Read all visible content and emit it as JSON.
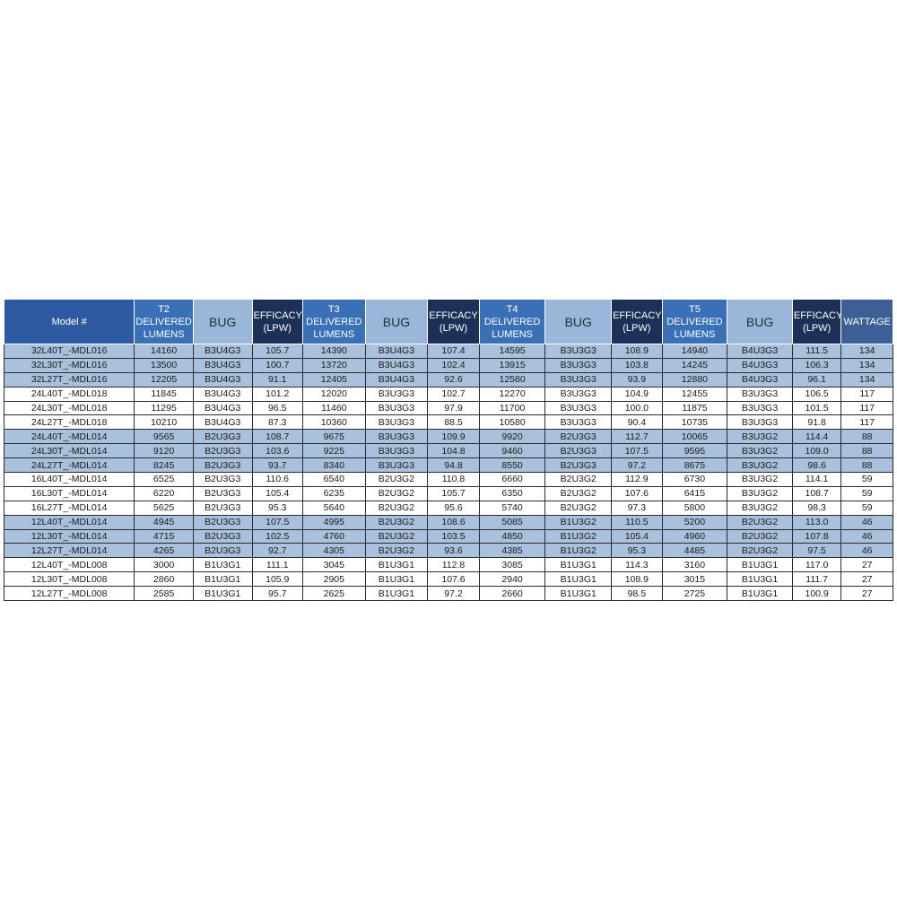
{
  "columns": [
    {
      "label": "Model #",
      "kind": "model"
    },
    {
      "label": "T2 DELIVERED LUMENS",
      "lines": [
        "T2",
        "DELIVERED",
        "LUMENS"
      ],
      "kind": "lumens"
    },
    {
      "label": "BUG",
      "lines": [
        "BUG"
      ],
      "kind": "bug"
    },
    {
      "label": "EFFICACY (LPW)",
      "lines": [
        "EFFICACY",
        "(LPW)"
      ],
      "kind": "eff"
    },
    {
      "label": "T3 DELIVERED LUMENS",
      "lines": [
        "T3",
        "DELIVERED",
        "LUMENS"
      ],
      "kind": "lumens"
    },
    {
      "label": "BUG",
      "lines": [
        "BUG"
      ],
      "kind": "bug"
    },
    {
      "label": "EFFICACY (LPW)",
      "lines": [
        "EFFICACY",
        "(LPW)"
      ],
      "kind": "eff"
    },
    {
      "label": "T4 DELIVERED LUMENS",
      "lines": [
        "T4 DELIVERED",
        "LUMENS"
      ],
      "kind": "lumens"
    },
    {
      "label": "BUG",
      "lines": [
        "BUG"
      ],
      "kind": "bug"
    },
    {
      "label": "EFFICACY (LPW)",
      "lines": [
        "EFFICACY",
        "(LPW)"
      ],
      "kind": "eff"
    },
    {
      "label": "T5 DELIVERED LUMENS",
      "lines": [
        "T5 DELIVERED",
        "LUMENS"
      ],
      "kind": "lumens"
    },
    {
      "label": "BUG",
      "lines": [
        "BUG"
      ],
      "kind": "bug"
    },
    {
      "label": "EFFICACY (LPW)",
      "lines": [
        "EFFICACY",
        "(LPW)"
      ],
      "kind": "eff"
    },
    {
      "label": "WATTAGE",
      "lines": [
        "WATTAGE"
      ],
      "kind": "watt"
    }
  ],
  "rows": [
    {
      "shade": true,
      "cells": [
        "32L40T_-MDL016",
        "14160",
        "B3U4G3",
        "105.7",
        "14390",
        "B3U4G3",
        "107.4",
        "14595",
        "B3U3G3",
        "108.9",
        "14940",
        "B4U3G3",
        "111.5",
        "134"
      ]
    },
    {
      "shade": true,
      "cells": [
        "32L30T_-MDL016",
        "13500",
        "B3U4G3",
        "100.7",
        "13720",
        "B3U4G3",
        "102.4",
        "13915",
        "B3U3G3",
        "103.8",
        "14245",
        "B4U3G3",
        "106.3",
        "134"
      ]
    },
    {
      "shade": true,
      "cells": [
        "32L27T_-MDL016",
        "12205",
        "B3U4G3",
        "91.1",
        "12405",
        "B3U4G3",
        "92.6",
        "12580",
        "B3U3G3",
        "93.9",
        "12880",
        "B4U3G3",
        "96.1",
        "134"
      ]
    },
    {
      "shade": false,
      "cells": [
        "24L40T_-MDL018",
        "11845",
        "B3U4G3",
        "101.2",
        "12020",
        "B3U3G3",
        "102.7",
        "12270",
        "B3U3G3",
        "104.9",
        "12455",
        "B3U3G3",
        "106.5",
        "117"
      ]
    },
    {
      "shade": false,
      "cells": [
        "24L30T_-MDL018",
        "11295",
        "B3U4G3",
        "96.5",
        "11460",
        "B3U3G3",
        "97.9",
        "11700",
        "B3U3G3",
        "100.0",
        "11875",
        "B3U3G3",
        "101.5",
        "117"
      ]
    },
    {
      "shade": false,
      "cells": [
        "24L27T_-MDL018",
        "10210",
        "B3U4G3",
        "87.3",
        "10360",
        "B3U3G3",
        "88.5",
        "10580",
        "B3U3G3",
        "90.4",
        "10735",
        "B3U3G3",
        "91.8",
        "117"
      ]
    },
    {
      "shade": true,
      "cells": [
        "24L40T_-MDL014",
        "9565",
        "B2U3G3",
        "108.7",
        "9675",
        "B3U3G3",
        "109.9",
        "9920",
        "B2U3G3",
        "112.7",
        "10065",
        "B3U3G2",
        "114.4",
        "88"
      ]
    },
    {
      "shade": true,
      "cells": [
        "24L30T_-MDL014",
        "9120",
        "B2U3G3",
        "103.6",
        "9225",
        "B3U3G3",
        "104.8",
        "9460",
        "B2U3G3",
        "107.5",
        "9595",
        "B3U3G2",
        "109.0",
        "88"
      ]
    },
    {
      "shade": true,
      "cells": [
        "24L27T_-MDL014",
        "8245",
        "B2U3G3",
        "93.7",
        "8340",
        "B3U3G3",
        "94.8",
        "8550",
        "B2U3G3",
        "97.2",
        "8675",
        "B3U3G2",
        "98.6",
        "88"
      ]
    },
    {
      "shade": false,
      "cells": [
        "16L40T_-MDL014",
        "6525",
        "B2U3G3",
        "110.6",
        "6540",
        "B2U3G2",
        "110.8",
        "6660",
        "B2U3G2",
        "112.9",
        "6730",
        "B3U3G2",
        "114.1",
        "59"
      ]
    },
    {
      "shade": false,
      "cells": [
        "16L30T_-MDL014",
        "6220",
        "B2U3G3",
        "105.4",
        "6235",
        "B2U3G2",
        "105.7",
        "6350",
        "B2U3G2",
        "107.6",
        "6415",
        "B3U3G2",
        "108.7",
        "59"
      ]
    },
    {
      "shade": false,
      "cells": [
        "16L27T_-MDL014",
        "5625",
        "B2U3G3",
        "95.3",
        "5640",
        "B2U3G2",
        "95.6",
        "5740",
        "B2U3G2",
        "97.3",
        "5800",
        "B3U3G2",
        "98.3",
        "59"
      ]
    },
    {
      "shade": true,
      "cells": [
        "12L40T_-MDL014",
        "4945",
        "B2U3G3",
        "107.5",
        "4995",
        "B2U3G2",
        "108.6",
        "5085",
        "B1U3G2",
        "110.5",
        "5200",
        "B2U3G2",
        "113.0",
        "46"
      ]
    },
    {
      "shade": true,
      "cells": [
        "12L30T_-MDL014",
        "4715",
        "B2U3G3",
        "102.5",
        "4760",
        "B2U3G2",
        "103.5",
        "4850",
        "B1U3G2",
        "105.4",
        "4960",
        "B2U3G2",
        "107.8",
        "46"
      ]
    },
    {
      "shade": true,
      "cells": [
        "12L27T_-MDL014",
        "4265",
        "B2U3G3",
        "92.7",
        "4305",
        "B2U3G2",
        "93.6",
        "4385",
        "B1U3G2",
        "95.3",
        "4485",
        "B2U3G2",
        "97.5",
        "46"
      ]
    },
    {
      "shade": false,
      "cells": [
        "12L40T_-MDL008",
        "3000",
        "B1U3G1",
        "111.1",
        "3045",
        "B1U3G1",
        "112.8",
        "3085",
        "B1U3G1",
        "114.3",
        "3160",
        "B1U3G1",
        "117.0",
        "27"
      ]
    },
    {
      "shade": false,
      "cells": [
        "12L30T_-MDL008",
        "2860",
        "B1U3G1",
        "105.9",
        "2905",
        "B1U3G1",
        "107.6",
        "2940",
        "B1U3G1",
        "108.9",
        "3015",
        "B1U3G1",
        "111.7",
        "27"
      ]
    },
    {
      "shade": false,
      "cells": [
        "12L27T_-MDL008",
        "2585",
        "B1U3G1",
        "95.7",
        "2625",
        "B1U3G1",
        "97.2",
        "2660",
        "B1U3G1",
        "98.5",
        "2725",
        "B1U3G1",
        "100.9",
        "27"
      ]
    }
  ]
}
